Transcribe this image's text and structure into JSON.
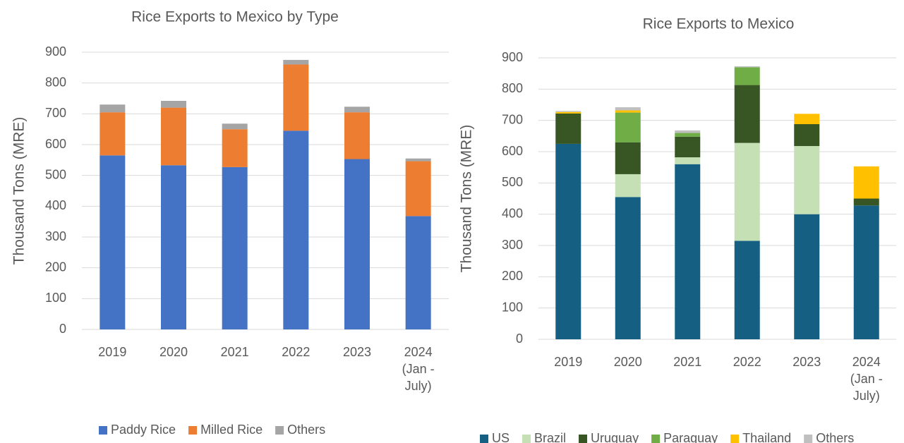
{
  "chart_data": [
    {
      "type": "bar",
      "stacked": true,
      "title": "Rice Exports to Mexico by Type",
      "y_label": "Thousand Tons (MRE)",
      "categories": [
        "2019",
        "2020",
        "2021",
        "2022",
        "2023",
        "2024 (Jan - July)"
      ],
      "series": [
        {
          "name": "Paddy Rice",
          "color": "#4472c4",
          "values": [
            565,
            533,
            527,
            645,
            553,
            368
          ]
        },
        {
          "name": "Milled Rice",
          "color": "#ed7d31",
          "values": [
            140,
            187,
            123,
            215,
            152,
            178
          ]
        },
        {
          "name": "Others",
          "color": "#a5a5a5",
          "values": [
            25,
            22,
            18,
            15,
            18,
            9
          ]
        }
      ],
      "ylim": [
        0,
        900
      ],
      "yticks": [
        0,
        100,
        200,
        300,
        400,
        500,
        600,
        700,
        800,
        900
      ],
      "grid": true,
      "legend": "bottom"
    },
    {
      "type": "bar",
      "stacked": true,
      "title": "Rice Exports to Mexico",
      "y_label": "Thousand Tons  (MRE)",
      "categories": [
        "2019",
        "2020",
        "2021",
        "2022",
        "2023",
        "2024 (Jan - July)"
      ],
      "series": [
        {
          "name": "US",
          "color": "#156082",
          "values": [
            625,
            455,
            560,
            315,
            400,
            428
          ]
        },
        {
          "name": "Brazil",
          "color": "#c5e0b4",
          "values": [
            0,
            73,
            22,
            313,
            218,
            0
          ]
        },
        {
          "name": "Uruguay",
          "color": "#375623",
          "values": [
            97,
            102,
            66,
            185,
            70,
            22
          ]
        },
        {
          "name": "Paraguay",
          "color": "#70ad47",
          "values": [
            0,
            95,
            12,
            57,
            0,
            0
          ]
        },
        {
          "name": "Thailand",
          "color": "#ffc000",
          "values": [
            5,
            7,
            0,
            0,
            33,
            103
          ]
        },
        {
          "name": "Others",
          "color": "#bfbfbf",
          "values": [
            3,
            10,
            8,
            3,
            0,
            0
          ]
        }
      ],
      "ylim": [
        0,
        900
      ],
      "yticks": [
        0,
        100,
        200,
        300,
        400,
        500,
        600,
        700,
        800,
        900
      ],
      "grid": true,
      "legend": "bottom"
    }
  ]
}
